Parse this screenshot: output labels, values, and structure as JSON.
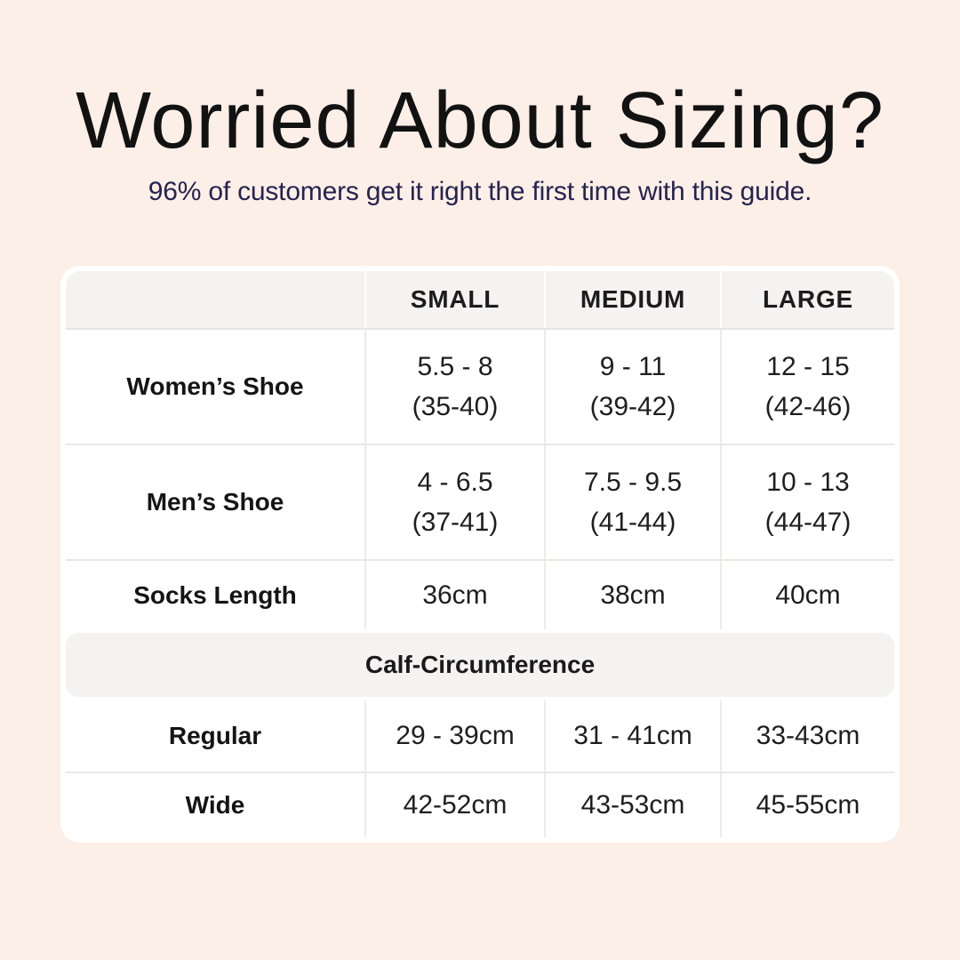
{
  "page": {
    "background_color": "#fcefe7",
    "card_color": "#ffffff",
    "band_color": "#f4f3f1",
    "divider_color": "#e9e7e4",
    "title_color": "#121212",
    "subtitle_color": "#262350",
    "text_color": "#1e1e20"
  },
  "chart_data": {
    "type": "table",
    "title": "Worried About Sizing?",
    "subtitle": "96% of customers get it right the first time with this guide.",
    "columns": [
      "",
      "SMALL",
      "MEDIUM",
      "LARGE"
    ],
    "rows": [
      {
        "label": "Women’s Shoe",
        "values": [
          [
            "5.5 - 8",
            "(35-40)"
          ],
          [
            "9 - 11",
            "(39-42)"
          ],
          [
            "12 - 15",
            "(42-46)"
          ]
        ]
      },
      {
        "label": "Men’s Shoe",
        "values": [
          [
            "4 - 6.5",
            "(37-41)"
          ],
          [
            "7.5 - 9.5",
            "(41-44)"
          ],
          [
            "10 - 13",
            "(44-47)"
          ]
        ]
      },
      {
        "label": "Socks Length",
        "values": [
          [
            "36cm"
          ],
          [
            "38cm"
          ],
          [
            "40cm"
          ]
        ]
      }
    ],
    "section": {
      "header": "Calf-Circumference",
      "rows": [
        {
          "label": "Regular",
          "values": [
            [
              "29 - 39cm"
            ],
            [
              "31 - 41cm"
            ],
            [
              "33-43cm"
            ]
          ]
        },
        {
          "label": "Wide",
          "values": [
            [
              "42-52cm"
            ],
            [
              "43-53cm"
            ],
            [
              "45-55cm"
            ]
          ]
        }
      ]
    }
  }
}
